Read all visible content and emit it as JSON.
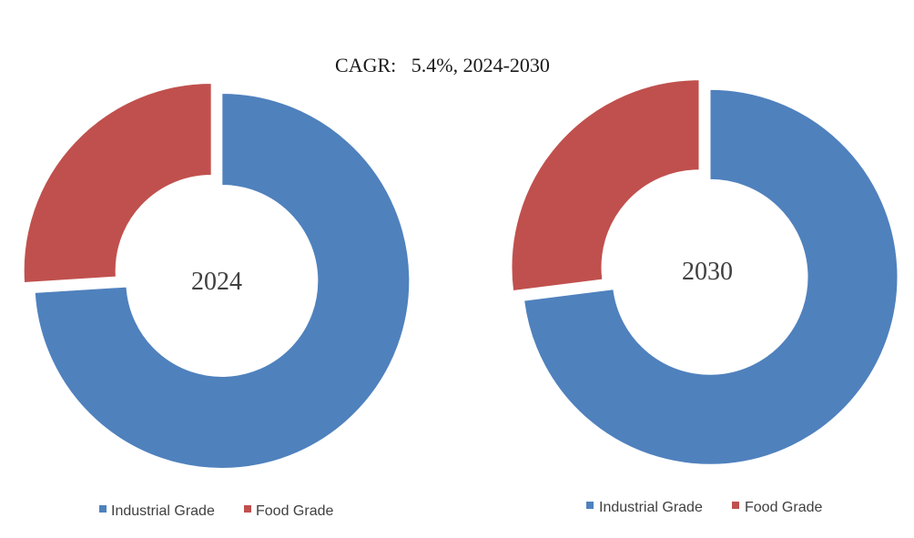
{
  "chart_data": {
    "type": "pie",
    "title": "CAGR:   5.4%, 2024-2030",
    "categories": [
      "Industrial Grade",
      "Food Grade"
    ],
    "colors": [
      "#4f81bd",
      "#c0504d"
    ],
    "charts": [
      {
        "label": "2024",
        "series": [
          {
            "name": "Industrial Grade",
            "value": 74
          },
          {
            "name": "Food Grade",
            "value": 26
          }
        ],
        "legend": [
          "Industrial Grade",
          "Food Grade"
        ]
      },
      {
        "label": "2030",
        "series": [
          {
            "name": "Industrial Grade",
            "value": 73
          },
          {
            "name": "Food Grade",
            "value": 27
          }
        ],
        "legend": [
          "Industrial Grade",
          "Food Grade"
        ]
      }
    ]
  }
}
